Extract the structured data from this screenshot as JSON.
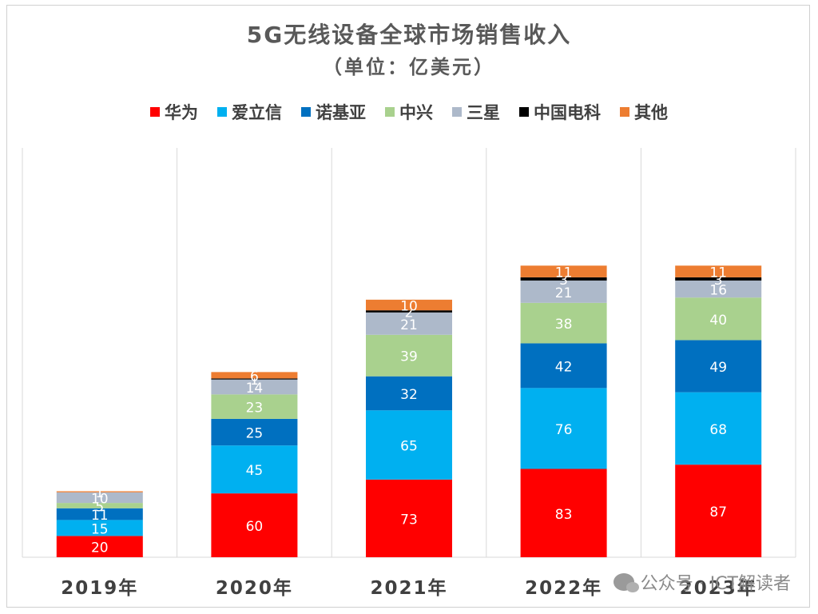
{
  "chart_data": {
    "type": "bar",
    "stacked": true,
    "title": "5G无线设备全球市场销售收入",
    "subtitle": "（单位：亿美元）",
    "categories": [
      "2019年",
      "2020年",
      "2021年",
      "2022年",
      "2023年"
    ],
    "ylim": [
      0,
      300
    ],
    "grid": "vertical separators",
    "legend_position": "top",
    "series": [
      {
        "name": "华为",
        "color": "#ff0000",
        "values": [
          20,
          60,
          73,
          83,
          87
        ]
      },
      {
        "name": "爱立信",
        "color": "#00b0f0",
        "values": [
          15,
          45,
          65,
          76,
          68
        ]
      },
      {
        "name": "诺基亚",
        "color": "#0070c0",
        "values": [
          11,
          25,
          32,
          42,
          49
        ]
      },
      {
        "name": "中兴",
        "color": "#a9d18e",
        "values": [
          5,
          23,
          39,
          38,
          40
        ]
      },
      {
        "name": "三星",
        "color": "#adb9ca",
        "values": [
          10,
          14,
          21,
          21,
          16
        ]
      },
      {
        "name": "中国电科",
        "color": "#000000",
        "values": [
          0,
          1,
          2,
          3,
          3
        ]
      },
      {
        "name": "其他",
        "color": "#ed7d31",
        "values": [
          1,
          6,
          10,
          11,
          11
        ]
      }
    ]
  },
  "watermark": {
    "icon": "wechat-icon",
    "text": "公众号 · ICT解读者"
  }
}
